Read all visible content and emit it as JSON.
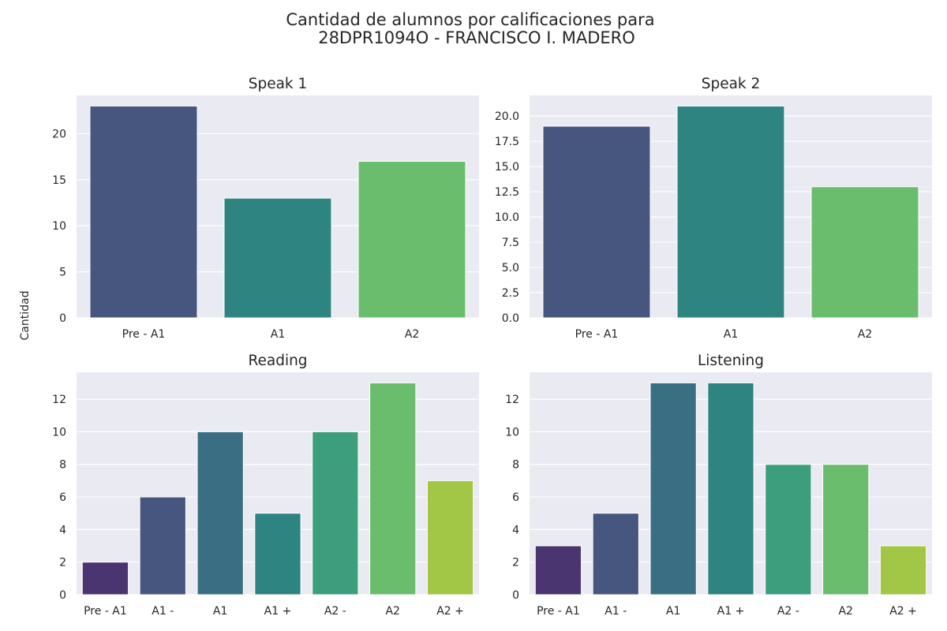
{
  "title_line1": "Cantidad de alumnos por calificaciones para",
  "title_line2": "28DPR1094O - FRANCISCO I. MADERO",
  "ylabel": "Cantidad",
  "chart_data": [
    {
      "type": "bar",
      "title": "Speak 1",
      "categories": [
        "Pre - A1",
        "A1",
        "A2"
      ],
      "values": [
        23,
        13,
        17
      ],
      "ylim": [
        0,
        24.15
      ],
      "yticks": [
        0,
        5,
        10,
        15,
        20
      ],
      "ytick_labels": [
        "0",
        "5",
        "10",
        "15",
        "20"
      ],
      "colors": [
        "#46567f",
        "#2e8480",
        "#6abd6d"
      ],
      "grid": true
    },
    {
      "type": "bar",
      "title": "Speak 2",
      "categories": [
        "Pre - A1",
        "A1",
        "A2"
      ],
      "values": [
        19,
        21,
        13
      ],
      "ylim": [
        0,
        22.05
      ],
      "yticks": [
        0,
        2.5,
        5,
        7.5,
        10,
        12.5,
        15,
        17.5,
        20
      ],
      "ytick_labels": [
        "0.0",
        "2.5",
        "5.0",
        "7.5",
        "10.0",
        "12.5",
        "15.0",
        "17.5",
        "20.0"
      ],
      "colors": [
        "#46567f",
        "#2e8480",
        "#6abd6d"
      ],
      "grid": true
    },
    {
      "type": "bar",
      "title": "Reading",
      "categories": [
        "Pre - A1",
        "A1 -",
        "A1",
        "A1 +",
        "A2 -",
        "A2",
        "A2 +"
      ],
      "values": [
        2,
        6,
        10,
        5,
        10,
        13,
        7
      ],
      "ylim": [
        0,
        13.65
      ],
      "yticks": [
        0,
        2,
        4,
        6,
        8,
        10,
        12
      ],
      "ytick_labels": [
        "0",
        "2",
        "4",
        "6",
        "8",
        "10",
        "12"
      ],
      "colors": [
        "#4b3571",
        "#46567f",
        "#3a6e82",
        "#2e8480",
        "#3c9e7c",
        "#6abd6d",
        "#a2c646"
      ],
      "grid": true
    },
    {
      "type": "bar",
      "title": "Listening",
      "categories": [
        "Pre - A1",
        "A1 -",
        "A1",
        "A1 +",
        "A2 -",
        "A2",
        "A2 +"
      ],
      "values": [
        3,
        5,
        13,
        13,
        8,
        8,
        3
      ],
      "ylim": [
        0,
        13.65
      ],
      "yticks": [
        0,
        2,
        4,
        6,
        8,
        10,
        12
      ],
      "ytick_labels": [
        "0",
        "2",
        "4",
        "6",
        "8",
        "10",
        "12"
      ],
      "colors": [
        "#4b3571",
        "#46567f",
        "#3a6e82",
        "#2e8480",
        "#3c9e7c",
        "#6abd6d",
        "#a2c646"
      ],
      "grid": true
    }
  ]
}
